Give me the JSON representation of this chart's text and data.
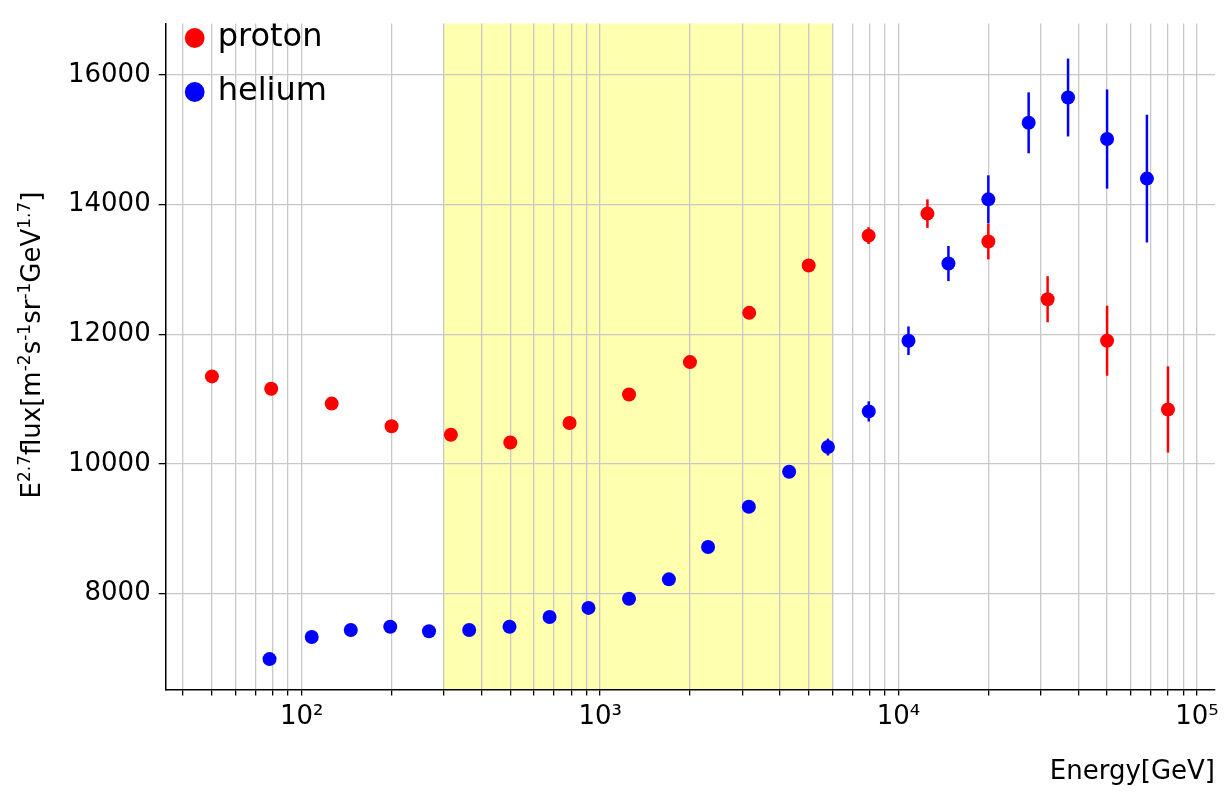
{
  "chart_data": {
    "type": "scatter",
    "xlabel": "Energy[GeV]",
    "ylabel": "E$^{2.7}$flux[m$^{-2}$s$^{-1}$sr$^{-1}$GeV$^{1.7}$]",
    "log": "x",
    "grid": true,
    "legend": "top left",
    "marker": "circle",
    "xlim": [
      35,
      115000
    ],
    "ylim": [
      6520,
      16790
    ],
    "xticks": [
      {
        "value": 40,
        "label": null
      },
      {
        "value": 50,
        "label": null
      },
      {
        "value": 60,
        "label": null
      },
      {
        "value": 70,
        "label": null
      },
      {
        "value": 80,
        "label": null
      },
      {
        "value": 90,
        "label": null
      },
      {
        "value": 100,
        "label": "10²"
      },
      {
        "value": 200,
        "label": null
      },
      {
        "value": 300,
        "label": null
      },
      {
        "value": 400,
        "label": null
      },
      {
        "value": 500,
        "label": null
      },
      {
        "value": 600,
        "label": null
      },
      {
        "value": 700,
        "label": null
      },
      {
        "value": 800,
        "label": null
      },
      {
        "value": 900,
        "label": null
      },
      {
        "value": 1000,
        "label": "10³"
      },
      {
        "value": 2000,
        "label": null
      },
      {
        "value": 3000,
        "label": null
      },
      {
        "value": 4000,
        "label": null
      },
      {
        "value": 5000,
        "label": null
      },
      {
        "value": 6000,
        "label": null
      },
      {
        "value": 7000,
        "label": null
      },
      {
        "value": 8000,
        "label": null
      },
      {
        "value": 9000,
        "label": null
      },
      {
        "value": 10000,
        "label": "10⁴"
      },
      {
        "value": 20000,
        "label": null
      },
      {
        "value": 30000,
        "label": null
      },
      {
        "value": 40000,
        "label": null
      },
      {
        "value": 50000,
        "label": null
      },
      {
        "value": 60000,
        "label": null
      },
      {
        "value": 70000,
        "label": null
      },
      {
        "value": 80000,
        "label": null
      },
      {
        "value": 90000,
        "label": null
      },
      {
        "value": 100000,
        "label": "10⁵"
      }
    ],
    "yticks": [
      8000,
      10000,
      12000,
      14000,
      16000
    ],
    "bands": [
      {
        "axis": "x",
        "from": 300,
        "to": 6000,
        "color": "#ffffb0"
      }
    ],
    "series": [
      {
        "name": "proton",
        "color": "#ff0000",
        "x": [
          50,
          79,
          126,
          200,
          316,
          500,
          790,
          1250,
          2000,
          3160,
          5000,
          7940,
          12500,
          20000,
          31600,
          50000,
          80000
        ],
        "values": [
          11350,
          11160,
          10930,
          10580,
          10450,
          10330,
          10630,
          11070,
          11570,
          12330,
          13060,
          13520,
          13860,
          13430,
          12540,
          11900,
          10840
        ],
        "errors": [
          null,
          null,
          null,
          null,
          null,
          null,
          null,
          null,
          null,
          null,
          null,
          130,
          220,
          275,
          355,
          540,
          665
        ]
      },
      {
        "name": "helium",
        "color": "#0000ff",
        "x": [
          78,
          108,
          146,
          198,
          267,
          364,
          497,
          677,
          914,
          1250,
          1700,
          2300,
          3150,
          4300,
          5800,
          7950,
          10800,
          14700,
          20000,
          27300,
          37000,
          50000,
          68000
        ],
        "values": [
          6990,
          7330,
          7440,
          7490,
          7420,
          7440,
          7490,
          7640,
          7780,
          7920,
          8220,
          8720,
          9340,
          9880,
          10260,
          10810,
          11900,
          13090,
          14080,
          15260,
          15650,
          15010,
          14400
        ],
        "errors": [
          null,
          null,
          null,
          null,
          null,
          null,
          null,
          null,
          null,
          null,
          null,
          null,
          null,
          null,
          130,
          155,
          220,
          270,
          370,
          470,
          600,
          765,
          985
        ]
      }
    ]
  }
}
